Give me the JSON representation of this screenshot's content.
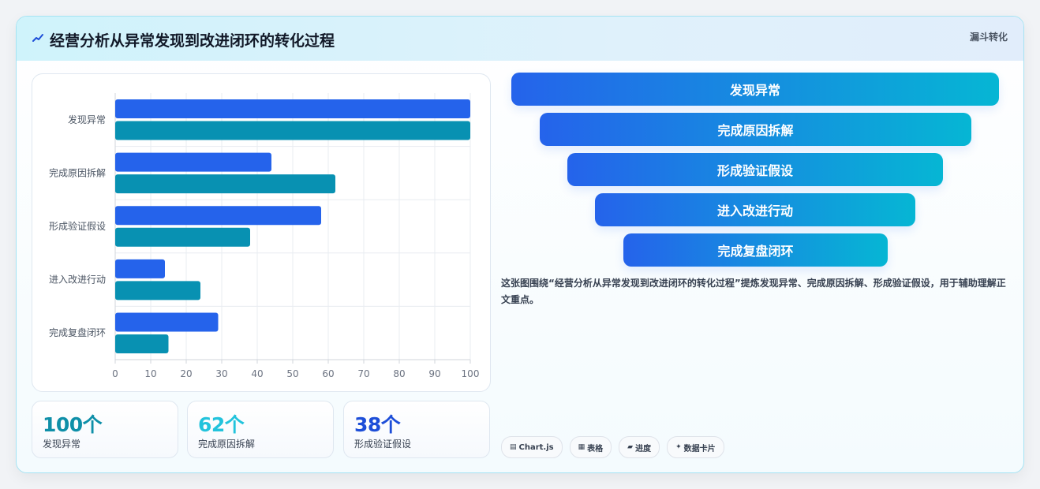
{
  "header": {
    "icon": "trend-icon",
    "title": "经营分析从异常发现到改进闭环的转化过程",
    "tag": "漏斗转化"
  },
  "chart_data": {
    "type": "bar",
    "orientation": "horizontal",
    "categories": [
      "发现异常",
      "完成原因拆解",
      "形成验证假设",
      "进入改进行动",
      "完成复盘闭环"
    ],
    "series": [
      {
        "values": [
          100,
          44,
          58,
          14,
          29
        ],
        "color": "#2563eb"
      },
      {
        "values": [
          100,
          62,
          38,
          24,
          15
        ],
        "color": "#0891b2"
      }
    ],
    "xlim": [
      0,
      100
    ],
    "xticks": [
      0,
      10,
      20,
      30,
      40,
      50,
      60,
      70,
      80,
      90,
      100
    ],
    "grid": true,
    "legend": "none"
  },
  "stats": [
    {
      "value": "100个",
      "label": "发现异常",
      "color": "#0e8fa8"
    },
    {
      "value": "62个",
      "label": "完成原因拆解",
      "color": "#22c3dc"
    },
    {
      "value": "38个",
      "label": "形成验证假设",
      "color": "#1d4ed8"
    }
  ],
  "funnel": {
    "stages": [
      "发现异常",
      "完成原因拆解",
      "形成验证假设",
      "进入改进行动",
      "完成复盘闭环"
    ],
    "gradient": [
      "#2563eb",
      "#06b6d4"
    ]
  },
  "description": "这张图围绕“经营分析从异常发现到改进闭环的转化过程”提炼发现异常、完成原因拆解、形成验证假设，用于辅助理解正文重点。",
  "chips": [
    {
      "icon": "chart-icon",
      "symbol": "▤",
      "label": "Chart.js"
    },
    {
      "icon": "table-icon",
      "symbol": "▦",
      "label": "表格"
    },
    {
      "icon": "progress-icon",
      "symbol": "▰",
      "label": "进度"
    },
    {
      "icon": "sparkle-icon",
      "symbol": "✦",
      "label": "数据卡片"
    }
  ]
}
